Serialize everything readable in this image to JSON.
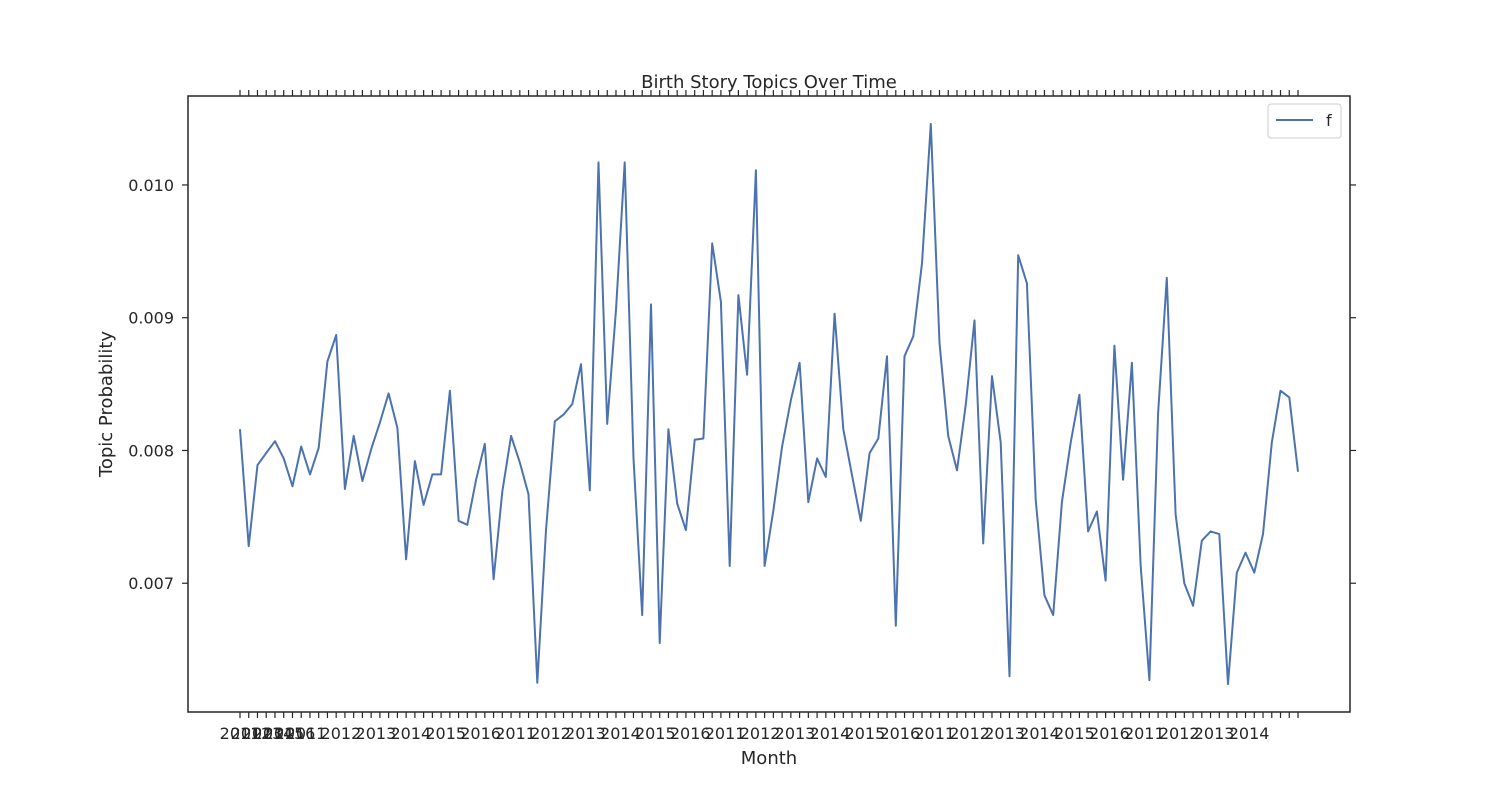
{
  "chart_data": {
    "type": "line",
    "title": "Birth Story Topics Over Time",
    "xlabel": "Month",
    "ylabel": "Topic Probability",
    "ylim": [
      0.00603,
      0.01067
    ],
    "yticks": [
      0.007,
      0.008,
      0.009,
      0.01
    ],
    "ytick_labels": [
      "0.007",
      "0.008",
      "0.009",
      "0.010"
    ],
    "xtick_labels_visible": [
      "2011",
      "2012",
      "2013",
      "2014",
      "2015",
      "2016"
    ],
    "grid": false,
    "legend_position": "top-right",
    "line_color": "#4c72b0",
    "series": [
      {
        "name": "f",
        "values": [
          0.00816,
          0.00728,
          0.00789,
          0.00798,
          0.00807,
          0.00794,
          0.00773,
          0.00803,
          0.00782,
          0.00802,
          0.00867,
          0.00887,
          0.00771,
          0.00811,
          0.00777,
          0.00801,
          0.00821,
          0.00843,
          0.00817,
          0.00718,
          0.00792,
          0.00759,
          0.00782,
          0.00782,
          0.00845,
          0.00747,
          0.00744,
          0.00778,
          0.00805,
          0.00703,
          0.00769,
          0.00811,
          0.00791,
          0.00767,
          0.00625,
          0.0074,
          0.00822,
          0.00827,
          0.00835,
          0.00865,
          0.0077,
          0.01017,
          0.0082,
          0.00906,
          0.01017,
          0.00794,
          0.00676,
          0.0091,
          0.00655,
          0.00816,
          0.0076,
          0.0074,
          0.00808,
          0.00809,
          0.00956,
          0.00912,
          0.00713,
          0.00917,
          0.00857,
          0.01011,
          0.00713,
          0.00755,
          0.00803,
          0.00838,
          0.00866,
          0.00761,
          0.00794,
          0.0078,
          0.00903,
          0.00816,
          0.00781,
          0.00747,
          0.00798,
          0.00809,
          0.00871,
          0.00668,
          0.00871,
          0.00886,
          0.00941,
          0.01046,
          0.00881,
          0.00811,
          0.00785,
          0.00834,
          0.00898,
          0.0073,
          0.00856,
          0.00806,
          0.0063,
          0.00947,
          0.00926,
          0.00763,
          0.00691,
          0.00676,
          0.00761,
          0.00806,
          0.00842,
          0.00739,
          0.00754,
          0.00702,
          0.00879,
          0.00778,
          0.00866,
          0.00714,
          0.00627,
          0.00828,
          0.0093,
          0.00752,
          0.007,
          0.00683,
          0.00732,
          0.00739,
          0.00737,
          0.00624,
          0.00708,
          0.00723,
          0.00708,
          0.00737,
          0.00806,
          0.00845,
          0.0084,
          0.00784
        ]
      }
    ]
  }
}
